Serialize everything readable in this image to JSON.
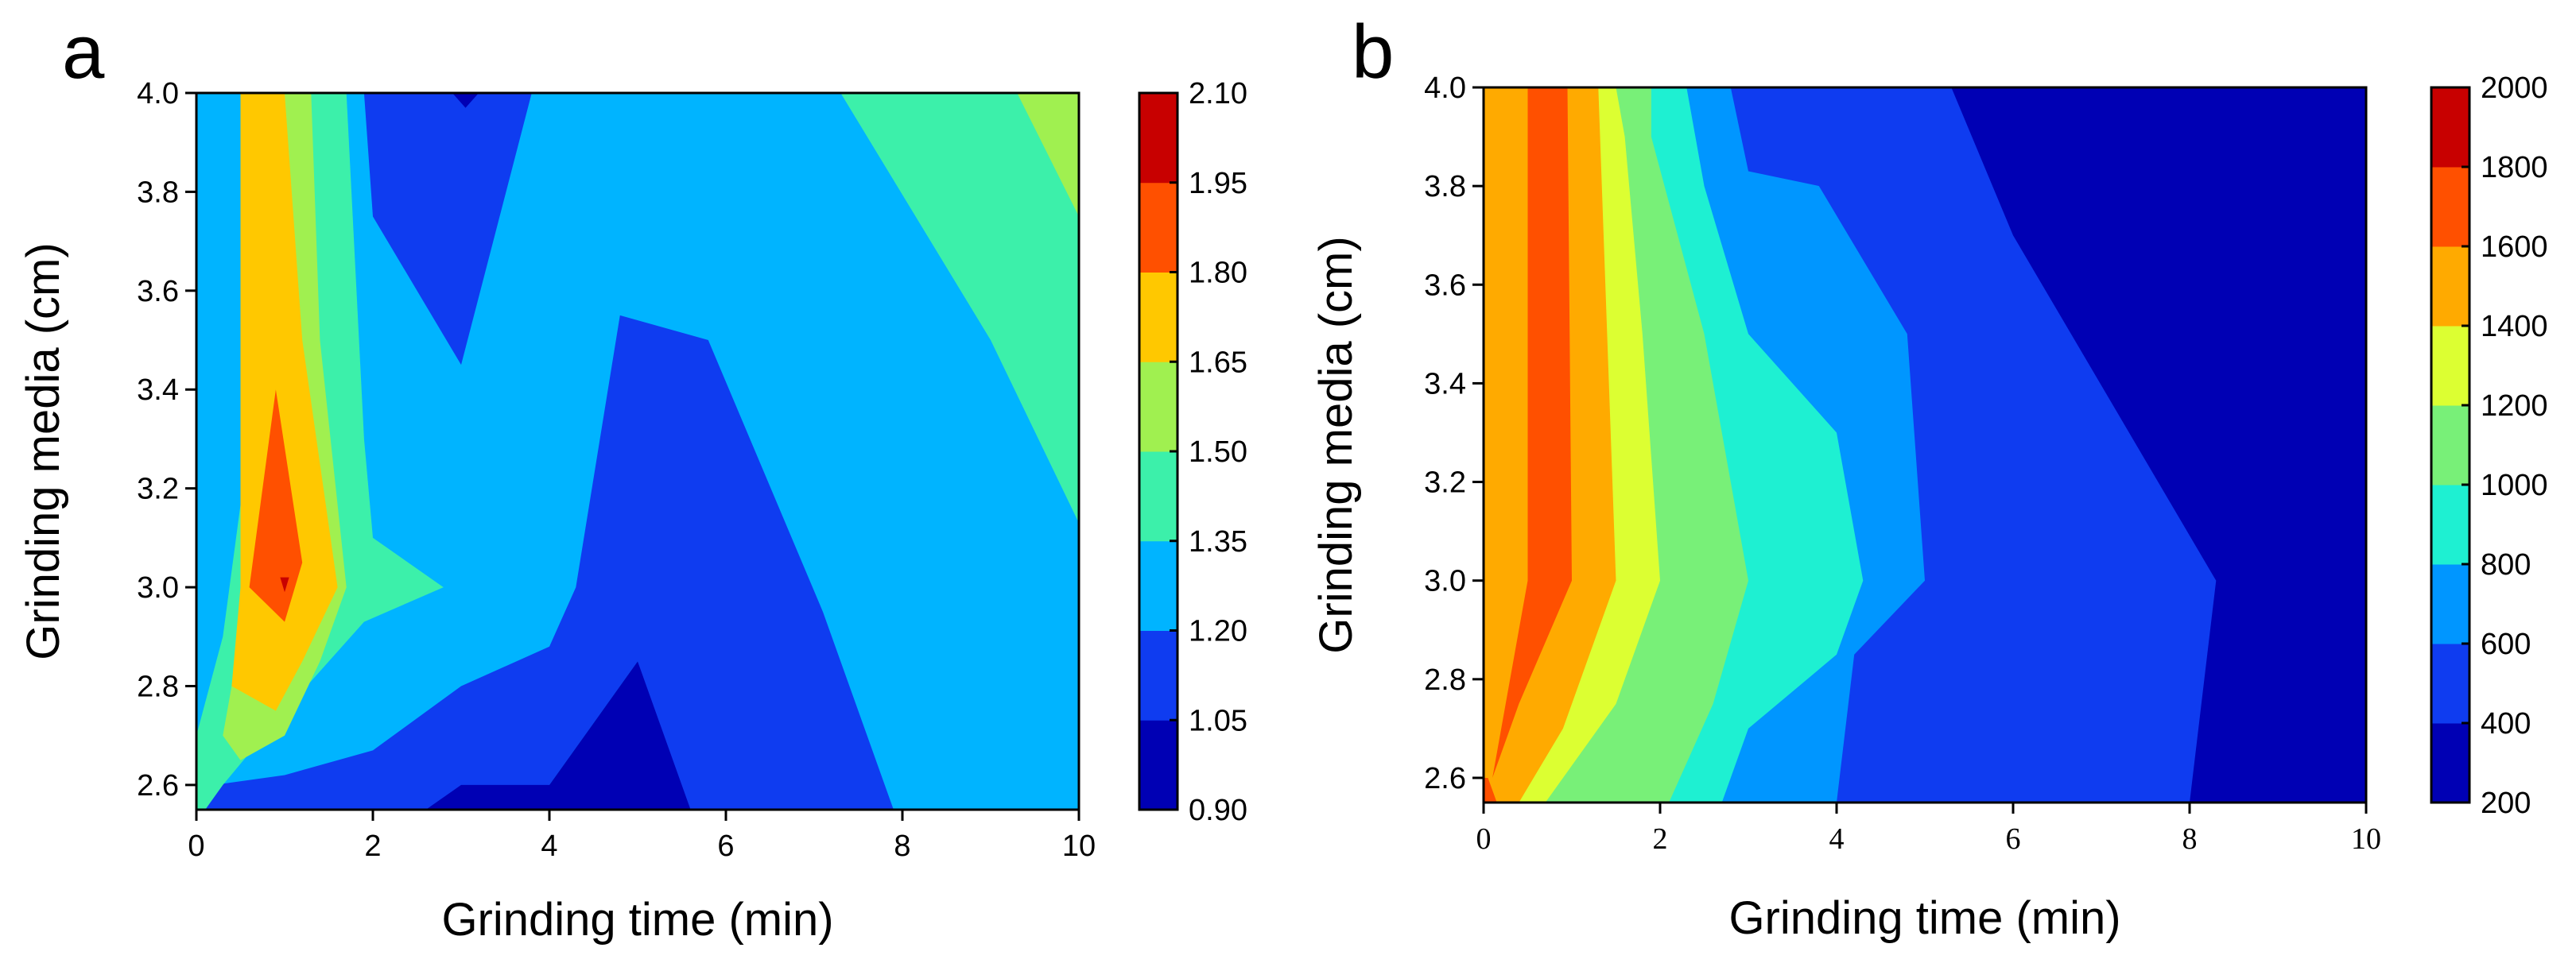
{
  "chart_data": [
    {
      "type": "contour",
      "panel": "a",
      "xlabel": "Grinding time (min)",
      "ylabel": "Grinding media (cm)",
      "xlim": [
        0,
        10
      ],
      "ylim": [
        2.55,
        4.0
      ],
      "xticks": [
        "0",
        "2",
        "4",
        "6",
        "8",
        "10"
      ],
      "yticks": [
        "2.6",
        "2.8",
        "3.0",
        "3.2",
        "3.4",
        "3.6",
        "3.8",
        "4.0"
      ],
      "colorbar": {
        "levels": [
          "0.90",
          "1.05",
          "1.20",
          "1.35",
          "1.50",
          "1.65",
          "1.80",
          "1.95",
          "2.10"
        ],
        "colors": [
          "#0000b4",
          "#0f3cf0",
          "#00b4ff",
          "#3cf0aa",
          "#a0f050",
          "#ffc800",
          "#ff5000",
          "#c80000"
        ]
      },
      "regions": [
        {
          "level_index": 2,
          "points": [
            [
              0,
              2.55
            ],
            [
              10,
              2.55
            ],
            [
              10,
              4.0
            ],
            [
              0,
              4.0
            ]
          ]
        },
        {
          "level_index": 1,
          "points": [
            [
              0,
              2.55
            ],
            [
              2.6,
              2.55
            ],
            [
              4,
              2.6
            ],
            [
              5,
              2.85
            ],
            [
              5.5,
              2.55
            ],
            [
              7.9,
              2.55
            ],
            [
              7.1,
              2.95
            ],
            [
              5.8,
              3.5
            ],
            [
              4.8,
              3.55
            ],
            [
              4.3,
              3.0
            ],
            [
              4.0,
              2.88
            ],
            [
              3.0,
              2.8
            ],
            [
              2.0,
              2.67
            ],
            [
              1.0,
              2.62
            ],
            [
              0.2,
              2.6
            ],
            [
              0,
              2.56
            ]
          ]
        },
        {
          "level_index": 0,
          "points": [
            [
              2.6,
              2.55
            ],
            [
              3,
              2.6
            ],
            [
              4,
              2.6
            ],
            [
              5,
              2.85
            ],
            [
              5.6,
              2.55
            ]
          ]
        },
        {
          "level_index": 1,
          "points": [
            [
              1.9,
              4.0
            ],
            [
              3.8,
              4.0
            ],
            [
              3,
              3.45
            ],
            [
              2,
              3.75
            ]
          ]
        },
        {
          "level_index": 0,
          "points": [
            [
              2.9,
              4.0
            ],
            [
              3.2,
              4.0
            ],
            [
              3.05,
              3.97
            ]
          ]
        },
        {
          "level_index": 3,
          "points": [
            [
              7.3,
              4.0
            ],
            [
              10,
              4.0
            ],
            [
              10,
              3.13
            ],
            [
              9,
              3.5
            ]
          ]
        },
        {
          "level_index": 4,
          "points": [
            [
              9.3,
              4.0
            ],
            [
              10,
              4.0
            ],
            [
              10,
              3.75
            ]
          ]
        },
        {
          "level_index": 3,
          "points": [
            [
              0,
              2.55
            ],
            [
              0,
              2.7
            ],
            [
              0.3,
              2.9
            ],
            [
              0.6,
              3.3
            ],
            [
              0.9,
              3.9
            ],
            [
              1.0,
              4.0
            ],
            [
              1.7,
              4.0
            ],
            [
              1.9,
              3.3
            ],
            [
              2.0,
              3.1
            ],
            [
              2.8,
              3.0
            ],
            [
              1.9,
              2.93
            ],
            [
              1.0,
              2.75
            ],
            [
              0.3,
              2.6
            ],
            [
              0.1,
              2.55
            ]
          ]
        },
        {
          "level_index": 4,
          "points": [
            [
              0.3,
              2.7
            ],
            [
              0.5,
              2.9
            ],
            [
              0.7,
              3.3
            ],
            [
              0.7,
              4.0
            ],
            [
              1.3,
              4.0
            ],
            [
              1.4,
              3.5
            ],
            [
              1.7,
              3.0
            ],
            [
              1.4,
              2.85
            ],
            [
              1.0,
              2.7
            ],
            [
              0.5,
              2.65
            ]
          ]
        },
        {
          "level_index": 5,
          "points": [
            [
              0.4,
              2.8
            ],
            [
              0.5,
              3.0
            ],
            [
              0.5,
              4.0
            ],
            [
              1.0,
              4.0
            ],
            [
              1.2,
              3.5
            ],
            [
              1.6,
              3.0
            ],
            [
              1.2,
              2.85
            ],
            [
              0.9,
              2.75
            ]
          ]
        },
        {
          "level_index": 6,
          "points": [
            [
              0.6,
              3.0
            ],
            [
              0.9,
              3.4
            ],
            [
              1.2,
              3.05
            ],
            [
              1.0,
              2.93
            ]
          ]
        },
        {
          "level_index": 7,
          "points": [
            [
              0.95,
              3.02
            ],
            [
              1.05,
              3.02
            ],
            [
              1.0,
              2.99
            ]
          ]
        }
      ]
    },
    {
      "type": "contour",
      "panel": "b",
      "xlabel": "Grinding time (min)",
      "ylabel": "Grinding media (cm)",
      "xlim": [
        0,
        10
      ],
      "ylim": [
        2.55,
        4.0
      ],
      "xticks": [
        "0",
        "2",
        "4",
        "6",
        "8",
        "10"
      ],
      "yticks": [
        "2.6",
        "2.8",
        "3.0",
        "3.2",
        "3.4",
        "3.6",
        "3.8",
        "4.0"
      ],
      "colorbar": {
        "levels": [
          "200",
          "400",
          "600",
          "800",
          "1000",
          "1200",
          "1400",
          "1600",
          "1800",
          "2000"
        ],
        "colors": [
          "#0000b4",
          "#0f3cf0",
          "#0096ff",
          "#1ef0d2",
          "#78f078",
          "#dcff32",
          "#ffaa00",
          "#ff5000",
          "#c80000"
        ]
      },
      "regions": [
        {
          "level_index": 0,
          "points": [
            [
              0,
              2.55
            ],
            [
              10,
              2.55
            ],
            [
              10,
              4.0
            ],
            [
              0,
              4.0
            ]
          ]
        },
        {
          "level_index": 1,
          "points": [
            [
              0,
              2.55
            ],
            [
              8,
              2.55
            ],
            [
              8.3,
              3.0
            ],
            [
              6,
              3.7
            ],
            [
              5.3,
              4.0
            ],
            [
              0,
              4.0
            ]
          ]
        },
        {
          "level_index": 2,
          "points": [
            [
              0,
              2.55
            ],
            [
              4,
              2.55
            ],
            [
              4.2,
              2.85
            ],
            [
              5,
              3.0
            ],
            [
              4.8,
              3.5
            ],
            [
              3.8,
              3.8
            ],
            [
              3,
              3.83
            ],
            [
              2.8,
              4.0
            ],
            [
              0,
              4.0
            ]
          ]
        },
        {
          "level_index": 3,
          "points": [
            [
              0,
              2.55
            ],
            [
              2.7,
              2.55
            ],
            [
              3,
              2.7
            ],
            [
              4,
              2.85
            ],
            [
              4.3,
              3.0
            ],
            [
              4,
              3.3
            ],
            [
              3,
              3.5
            ],
            [
              2.5,
              3.8
            ],
            [
              2.3,
              4.0
            ],
            [
              0,
              4.0
            ]
          ]
        },
        {
          "level_index": 4,
          "points": [
            [
              0,
              2.55
            ],
            [
              2.1,
              2.55
            ],
            [
              2.6,
              2.75
            ],
            [
              3.0,
              3.0
            ],
            [
              2.5,
              3.5
            ],
            [
              1.9,
              3.9
            ],
            [
              1.9,
              4.0
            ],
            [
              0,
              4.0
            ]
          ]
        },
        {
          "level_index": 5,
          "points": [
            [
              0,
              2.55
            ],
            [
              0.7,
              2.55
            ],
            [
              1.5,
              2.75
            ],
            [
              2.0,
              3.0
            ],
            [
              1.8,
              3.5
            ],
            [
              1.6,
              3.9
            ],
            [
              1.5,
              4.0
            ],
            [
              0,
              4.0
            ]
          ]
        },
        {
          "level_index": 6,
          "points": [
            [
              0,
              2.55
            ],
            [
              0.4,
              2.55
            ],
            [
              0.9,
              2.7
            ],
            [
              1.5,
              3.0
            ],
            [
              1.4,
              3.5
            ],
            [
              1.3,
              4.0
            ],
            [
              0,
              4.0
            ]
          ]
        },
        {
          "level_index": 7,
          "points": [
            [
              0.1,
              2.6
            ],
            [
              0.4,
              2.75
            ],
            [
              1.0,
              3.0
            ],
            [
              0.95,
              4.0
            ],
            [
              0.5,
              4.0
            ],
            [
              0.5,
              3.0
            ],
            [
              0.3,
              2.8
            ]
          ]
        },
        {
          "level_index": 7,
          "points": [
            [
              0,
              2.55
            ],
            [
              0.15,
              2.55
            ],
            [
              0.05,
              2.6
            ],
            [
              0,
              2.6
            ]
          ]
        }
      ]
    }
  ],
  "panel_letters": [
    "a",
    "b"
  ]
}
